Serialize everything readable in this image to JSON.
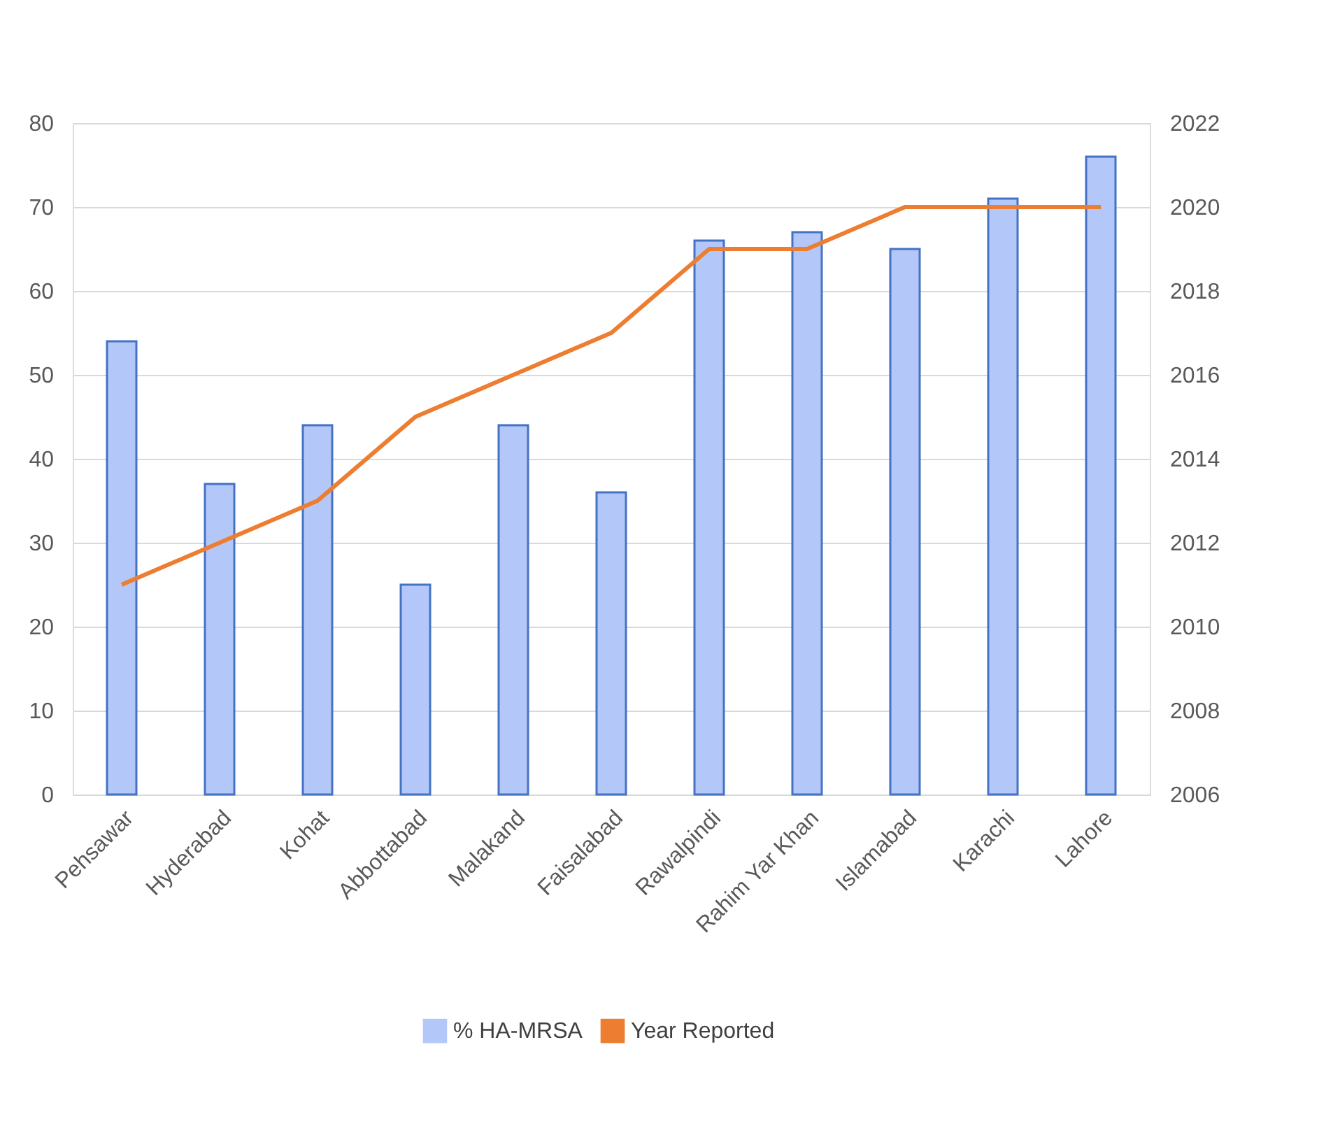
{
  "chart_data": {
    "type": "bar",
    "categories": [
      "Pehsawar",
      "Hyderabad",
      "Kohat",
      "Abbottabad",
      "Malakand",
      "Faisalabad",
      "Rawalpindi",
      "Rahim Yar Khan",
      "Islamabad",
      "Karachi",
      "Lahore"
    ],
    "series": [
      {
        "name": "% HA-MRSA",
        "color": "#b3c8f8",
        "values": [
          54,
          37,
          44,
          25,
          44,
          36,
          66,
          67,
          65,
          71,
          76
        ]
      },
      {
        "name": "Year Reported",
        "type": "line",
        "axis": "y2",
        "color": "#ed7d31",
        "values": [
          2011,
          2012,
          2013,
          2015,
          2016,
          2017,
          2019,
          2019,
          2020,
          2020,
          2020
        ]
      }
    ],
    "ylim": [
      0,
      80
    ],
    "yticks": [
      0,
      10,
      20,
      30,
      40,
      50,
      60,
      70,
      80
    ],
    "y2lim": [
      2006,
      2022
    ],
    "y2ticks": [
      2006,
      2008,
      2010,
      2012,
      2014,
      2016,
      2018,
      2020,
      2022
    ],
    "grid": "y",
    "legend": "bottom"
  }
}
